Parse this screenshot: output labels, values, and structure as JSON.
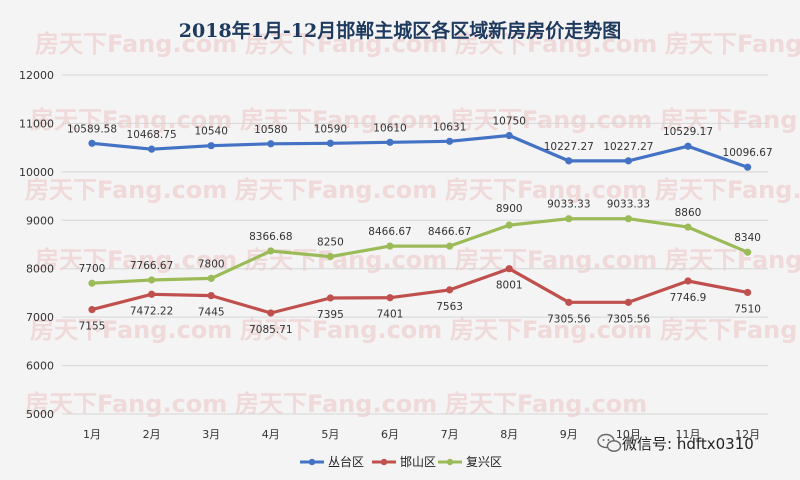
{
  "chart_data": {
    "type": "line",
    "title": "2018年1月-12月邯郸主城区各区域新房房价走势图",
    "categories": [
      "1月",
      "2月",
      "3月",
      "4月",
      "5月",
      "6月",
      "7月",
      "8月",
      "9月",
      "10月",
      "11月",
      "12月"
    ],
    "ylim": [
      5000,
      12000
    ],
    "yticks": [
      5000,
      6000,
      7000,
      8000,
      9000,
      10000,
      11000,
      12000
    ],
    "grid": true,
    "legend_position": "bottom",
    "series": [
      {
        "name": "丛台区",
        "color": "#4472c4",
        "values": [
          10589.58,
          10468.75,
          10540,
          10580,
          10590,
          10610,
          10631,
          10750,
          10227.27,
          10227.27,
          10529.17,
          10096.67
        ],
        "labels": [
          "10589.58",
          "10468.75",
          "10540",
          "10580",
          "10590",
          "10610",
          "10631",
          "10750",
          "10227.27",
          "10227.27",
          "10529.17",
          "10096.67"
        ]
      },
      {
        "name": "邯山区",
        "color": "#c0504d",
        "values": [
          7155,
          7472.22,
          7445,
          7085.71,
          7395,
          7401,
          7563,
          8001,
          7305.56,
          7305.56,
          7746.9,
          7510
        ],
        "labels": [
          "7155",
          "7472.22",
          "7445",
          "7085.71",
          "7395",
          "7401",
          "7563",
          "8001",
          "7305.56",
          "7305.56",
          "7746.9",
          "7510"
        ]
      },
      {
        "name": "复兴区",
        "color": "#9bbb59",
        "values": [
          7700,
          7766.67,
          7800,
          8366.68,
          8250,
          8466.67,
          8466.67,
          8900,
          9033.33,
          9033.33,
          8860,
          8340
        ],
        "labels": [
          "7700",
          "7766.67",
          "7800",
          "8366.68",
          "8250",
          "8466.67",
          "8466.67",
          "8900",
          "9033.33",
          "9033.33",
          "8860",
          "8340"
        ]
      }
    ]
  },
  "watermark": {
    "text": "房天下Fang.com",
    "wechat": "微信号: hdftx0310",
    "wechat_icon": "wechat-icon"
  }
}
